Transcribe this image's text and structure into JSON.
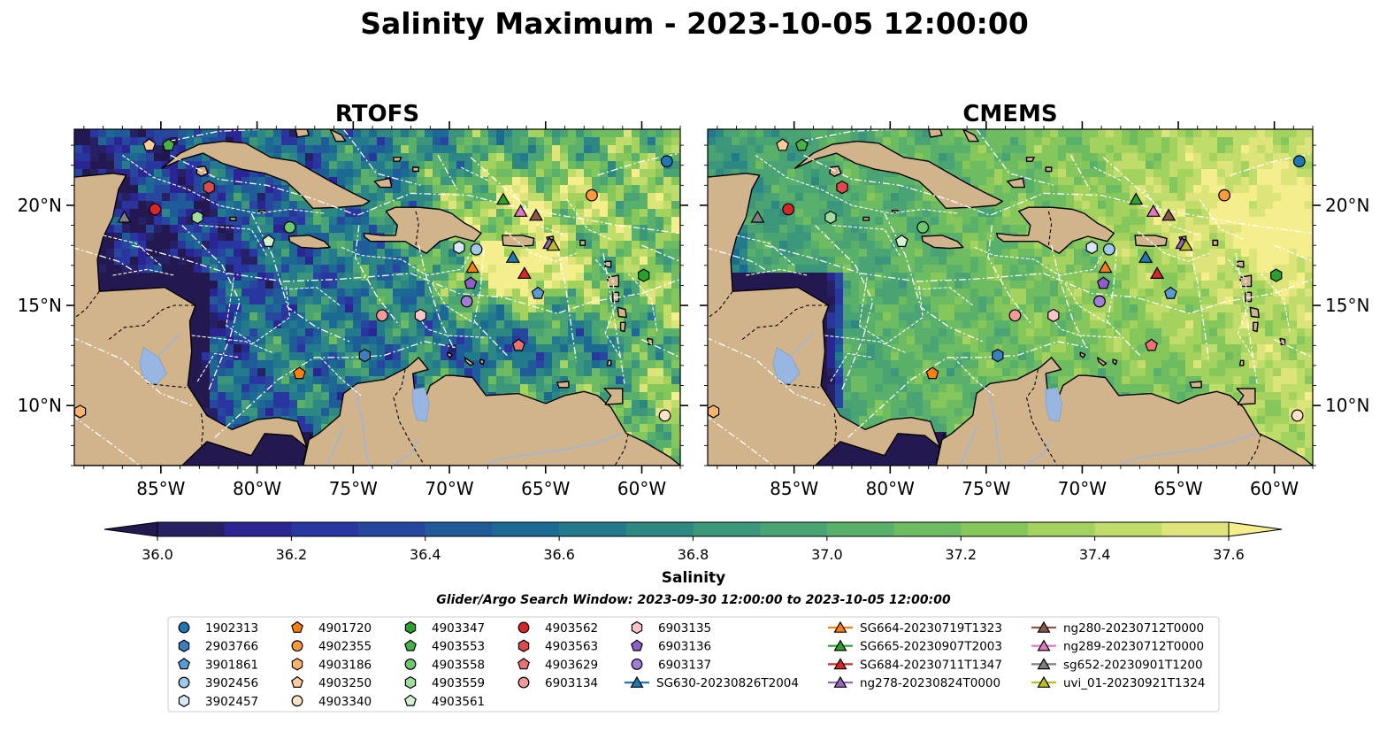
{
  "figure": {
    "title": "Salinity Maximum - 2023-10-05 12:00:00",
    "colorbar_label": "Salinity",
    "search_window": "Glider/Argo Search Window: 2023-09-30 12:00:00 to 2023-10-05 12:00:00"
  },
  "colors": {
    "land": "#d2b48c",
    "lakes": "#97b6e1",
    "ocean_deep": "#2a1f66",
    "boundaries": "#ffffff"
  },
  "chart_data": [
    {
      "type": "heatmap",
      "title": "RTOFS",
      "variable": "Salinity Maximum",
      "projection": "PlateCarree",
      "xlim": [
        -89.5,
        -58.0
      ],
      "ylim": [
        7.0,
        23.8
      ],
      "x_ticks": [
        "85°W",
        "80°W",
        "75°W",
        "70°W",
        "65°W",
        "60°W"
      ],
      "y_ticks": [
        "20°N",
        "15°N",
        "10°N"
      ],
      "y_tick_side": "left",
      "style": "fresh"
    },
    {
      "type": "heatmap",
      "title": "CMEMS",
      "variable": "Salinity Maximum",
      "projection": "PlateCarree",
      "xlim": [
        -89.5,
        -58.0
      ],
      "ylim": [
        7.0,
        23.8
      ],
      "x_ticks": [
        "85°W",
        "80°W",
        "75°W",
        "70°W",
        "65°W",
        "60°W"
      ],
      "y_ticks": [
        "20°N",
        "15°N",
        "10°N"
      ],
      "y_tick_side": "right",
      "style": "salty"
    }
  ],
  "colorbar": {
    "min": 36.0,
    "max": 37.6,
    "step": 0.1,
    "extend": "both",
    "tick_labels": [
      "36.0",
      "36.2",
      "36.4",
      "36.6",
      "36.8",
      "37.0",
      "37.2",
      "37.4",
      "37.6"
    ],
    "colors": [
      "#262065",
      "#2a2592",
      "#2936a0",
      "#27479f",
      "#1f5b98",
      "#1c6a93",
      "#237a8c",
      "#2d8883",
      "#3c967b",
      "#4aa373",
      "#59b06a",
      "#6dbc62",
      "#86c75c",
      "#a3d25e",
      "#c0dc6a",
      "#dde57a"
    ],
    "under_color": "#231950",
    "over_color": "#f5ee8c"
  },
  "legend": {
    "columns": [
      [
        {
          "label": "1902313",
          "marker": "circle",
          "color": "#1f77b4"
        },
        {
          "label": "2903766",
          "marker": "hexagon",
          "color": "#3a80c0"
        },
        {
          "label": "3901861",
          "marker": "pentagon",
          "color": "#5a9bd4"
        },
        {
          "label": "3902456",
          "marker": "circle",
          "color": "#9ec8ec"
        },
        {
          "label": "3902457",
          "marker": "hexagon",
          "color": "#d4e8f7"
        }
      ],
      [
        {
          "label": "4901720",
          "marker": "pentagon",
          "color": "#ff7f0e"
        },
        {
          "label": "4902355",
          "marker": "circle",
          "color": "#ff9a3c"
        },
        {
          "label": "4903186",
          "marker": "hexagon",
          "color": "#ffb46e"
        },
        {
          "label": "4903250",
          "marker": "pentagon",
          "color": "#ffcc9a"
        },
        {
          "label": "4903340",
          "marker": "circle",
          "color": "#ffe3c8"
        }
      ],
      [
        {
          "label": "4903347",
          "marker": "hexagon",
          "color": "#2ca02c"
        },
        {
          "label": "4903553",
          "marker": "pentagon",
          "color": "#47b247"
        },
        {
          "label": "4903558",
          "marker": "circle",
          "color": "#6cc86c"
        },
        {
          "label": "4903559",
          "marker": "hexagon",
          "color": "#9fdc9f"
        },
        {
          "label": "4903561",
          "marker": "pentagon",
          "color": "#d2f2d2"
        }
      ],
      [
        {
          "label": "4903562",
          "marker": "circle",
          "color": "#d62728"
        },
        {
          "label": "4903563",
          "marker": "hexagon",
          "color": "#e04a4a"
        },
        {
          "label": "4903629",
          "marker": "pentagon",
          "color": "#ea7272"
        },
        {
          "label": "6903134",
          "marker": "circle",
          "color": "#f29a9a"
        }
      ],
      [
        {
          "label": "6903135",
          "marker": "hexagon",
          "color": "#fcc4c4"
        },
        {
          "label": "6903136",
          "marker": "pentagon",
          "color": "#8c5fc9"
        },
        {
          "label": "6903137",
          "marker": "circle",
          "color": "#a07ed6"
        },
        {
          "label": "SG630-20230826T2004",
          "marker": "triangle",
          "color": "#1f77b4",
          "line": true
        }
      ],
      [
        {
          "label": "SG664-20230719T1323",
          "marker": "triangle",
          "color": "#ff7f0e",
          "line": true
        },
        {
          "label": "SG665-20230907T2003",
          "marker": "triangle",
          "color": "#2ca02c",
          "line": true
        },
        {
          "label": "SG684-20230711T1347",
          "marker": "triangle",
          "color": "#d62728",
          "line": true
        },
        {
          "label": "ng278-20230824T0000",
          "marker": "triangle",
          "color": "#9467bd",
          "line": true
        }
      ],
      [
        {
          "label": "ng280-20230712T0000",
          "marker": "triangle",
          "color": "#8c564b",
          "line": true
        },
        {
          "label": "ng289-20230712T0000",
          "marker": "triangle",
          "color": "#e377c2",
          "line": true
        },
        {
          "label": "sg652-20230901T1200",
          "marker": "triangle",
          "color": "#7f7f7f",
          "line": true
        },
        {
          "label": "uvi_01-20230921T1324",
          "marker": "triangle",
          "color": "#bcbd22",
          "line": true
        }
      ]
    ]
  },
  "markers": [
    {
      "id": "1902313",
      "marker": "circle",
      "color": "#1f77b4",
      "lon": -58.7,
      "lat": 22.2
    },
    {
      "id": "2903766",
      "marker": "hexagon",
      "color": "#3a80c0",
      "lon": -74.4,
      "lat": 12.5
    },
    {
      "id": "3901861",
      "marker": "pentagon",
      "color": "#5a9bd4",
      "lon": -65.4,
      "lat": 15.6
    },
    {
      "id": "3902456",
      "marker": "circle",
      "color": "#9ec8ec",
      "lon": -68.6,
      "lat": 17.8
    },
    {
      "id": "3902457",
      "marker": "hexagon",
      "color": "#d4e8f7",
      "lon": -69.5,
      "lat": 17.9
    },
    {
      "id": "4901720",
      "marker": "pentagon",
      "color": "#ff7f0e",
      "lon": -77.8,
      "lat": 11.6
    },
    {
      "id": "4902355",
      "marker": "circle",
      "color": "#ff9a3c",
      "lon": -62.6,
      "lat": 20.5
    },
    {
      "id": "4903186",
      "marker": "hexagon",
      "color": "#ffb46e",
      "lon": -89.2,
      "lat": 9.7
    },
    {
      "id": "4903250",
      "marker": "pentagon",
      "color": "#ffcc9a",
      "lon": -85.6,
      "lat": 23.0
    },
    {
      "id": "4903340",
      "marker": "circle",
      "color": "#ffe3c8",
      "lon": -58.8,
      "lat": 9.5
    },
    {
      "id": "4903347",
      "marker": "hexagon",
      "color": "#2ca02c",
      "lon": -59.9,
      "lat": 16.5
    },
    {
      "id": "4903553",
      "marker": "pentagon",
      "color": "#47b247",
      "lon": -84.6,
      "lat": 23.0
    },
    {
      "id": "4903558",
      "marker": "circle",
      "color": "#6cc86c",
      "lon": -78.3,
      "lat": 18.9
    },
    {
      "id": "4903559",
      "marker": "hexagon",
      "color": "#9fdc9f",
      "lon": -83.1,
      "lat": 19.4
    },
    {
      "id": "4903561",
      "marker": "pentagon",
      "color": "#d2f2d2",
      "lon": -79.4,
      "lat": 18.2
    },
    {
      "id": "4903562",
      "marker": "circle",
      "color": "#d62728",
      "lon": -85.3,
      "lat": 19.8
    },
    {
      "id": "4903563",
      "marker": "hexagon",
      "color": "#e04a4a",
      "lon": -82.5,
      "lat": 20.9
    },
    {
      "id": "4903629",
      "marker": "pentagon",
      "color": "#ea7272",
      "lon": -66.4,
      "lat": 13.0
    },
    {
      "id": "6903134",
      "marker": "circle",
      "color": "#f29a9a",
      "lon": -73.5,
      "lat": 14.5
    },
    {
      "id": "6903135",
      "marker": "hexagon",
      "color": "#fcc4c4",
      "lon": -71.5,
      "lat": 14.5
    },
    {
      "id": "6903136",
      "marker": "pentagon",
      "color": "#8c5fc9",
      "lon": -68.9,
      "lat": 16.1
    },
    {
      "id": "6903137",
      "marker": "circle",
      "color": "#a07ed6",
      "lon": -69.1,
      "lat": 15.2
    },
    {
      "id": "SG630-20230826T2004",
      "marker": "triangle",
      "color": "#1f77b4",
      "lon": -66.7,
      "lat": 17.4
    },
    {
      "id": "SG664-20230719T1323",
      "marker": "triangle",
      "color": "#ff7f0e",
      "lon": -68.8,
      "lat": 16.9
    },
    {
      "id": "SG665-20230907T2003",
      "marker": "triangle",
      "color": "#2ca02c",
      "lon": -67.2,
      "lat": 20.3
    },
    {
      "id": "SG684-20230711T1347",
      "marker": "triangle",
      "color": "#d62728",
      "lon": -66.1,
      "lat": 16.6
    },
    {
      "id": "ng278-20230824T0000",
      "marker": "triangle",
      "color": "#9467bd",
      "lon": -64.8,
      "lat": 18.1
    },
    {
      "id": "ng280-20230712T0000",
      "marker": "triangle",
      "color": "#8c564b",
      "lon": -65.5,
      "lat": 19.5
    },
    {
      "id": "ng289-20230712T0000",
      "marker": "triangle",
      "color": "#e377c2",
      "lon": -66.3,
      "lat": 19.7
    },
    {
      "id": "sg652-20230901T1200",
      "marker": "triangle",
      "color": "#7f7f7f",
      "lon": -86.9,
      "lat": 19.4
    },
    {
      "id": "uvi_01-20230921T1324",
      "marker": "triangle",
      "color": "#bcbd22",
      "lon": -64.6,
      "lat": 18.0
    }
  ]
}
